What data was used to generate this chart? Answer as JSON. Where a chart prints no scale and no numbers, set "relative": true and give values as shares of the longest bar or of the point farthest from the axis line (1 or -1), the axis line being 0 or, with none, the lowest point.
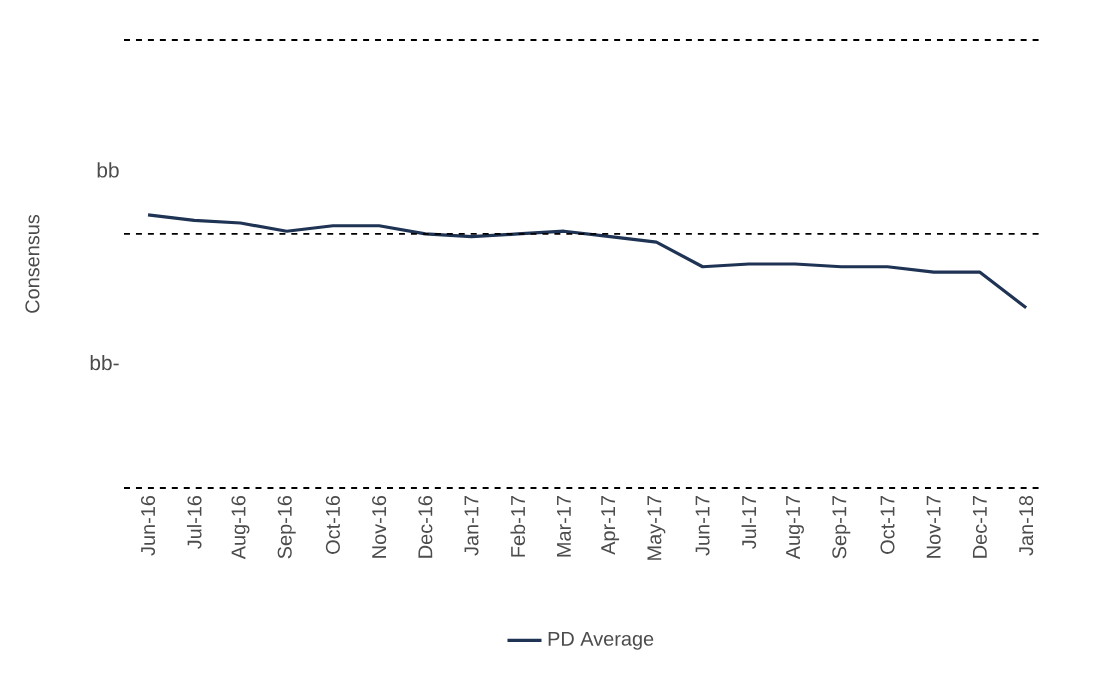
{
  "chart_data": {
    "type": "line",
    "ylabel": "Consensus",
    "relative": true,
    "categories": [
      "Jun-16",
      "Jul-16",
      "Aug-16",
      "Sep-16",
      "Oct-16",
      "Nov-16",
      "Dec-16",
      "Jan-17",
      "Feb-17",
      "Mar-17",
      "Apr-17",
      "May-17",
      "Jun-17",
      "Jul-17",
      "Aug-17",
      "Sep-17",
      "Oct-17",
      "Nov-17",
      "Dec-17",
      "Jan-18"
    ],
    "series": [
      {
        "name": "PD Average",
        "color": "#1f3354",
        "values": [
          1,
          0.98,
          0.97,
          0.94,
          0.96,
          0.96,
          0.93,
          0.92,
          0.93,
          0.94,
          0.92,
          0.9,
          0.81,
          0.82,
          0.82,
          0.81,
          0.81,
          0.79,
          0.79,
          0.66
        ]
      }
    ],
    "annotations": [
      "bb",
      "bb-"
    ],
    "ref_lines": [
      {
        "axis": "y",
        "value": 1.64,
        "color": "#000000",
        "line_style": "dashed"
      },
      {
        "axis": "y",
        "value": 0.93,
        "color": "#000000",
        "line_style": "dashed"
      }
    ],
    "legend": "bottom"
  }
}
